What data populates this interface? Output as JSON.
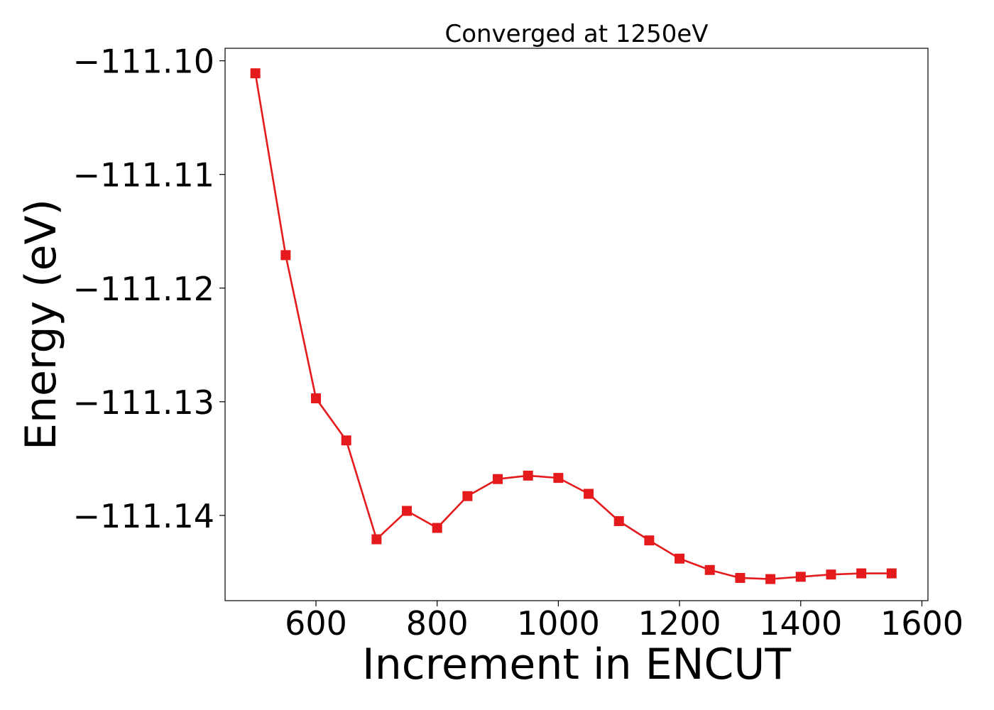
{
  "chart_data": {
    "type": "line",
    "title": "Converged at 1250eV",
    "xlabel": "Increment in ENCUT",
    "ylabel": "Energy (eV)",
    "xlim": [
      450,
      1610
    ],
    "ylim": [
      -111.1475,
      -111.0989
    ],
    "xticks": [
      600,
      800,
      1000,
      1200,
      1400,
      1600
    ],
    "yticks": [
      -111.1,
      -111.11,
      -111.12,
      -111.13,
      -111.14
    ],
    "xtick_labels": [
      "600",
      "800",
      "1000",
      "1200",
      "1400",
      "1600"
    ],
    "ytick_labels": [
      "−111.10",
      "−111.11",
      "−111.12",
      "−111.13",
      "−111.14"
    ],
    "grid": false,
    "series": [
      {
        "color": "#e41a1c",
        "marker": "square",
        "x": [
          500,
          550,
          600,
          650,
          700,
          750,
          800,
          850,
          900,
          950,
          1000,
          1050,
          1100,
          1150,
          1200,
          1250,
          1300,
          1350,
          1400,
          1450,
          1500,
          1550
        ],
        "y": [
          -111.1011,
          -111.1171,
          -111.1297,
          -111.1334,
          -111.1421,
          -111.1396,
          -111.1411,
          -111.1383,
          -111.1368,
          -111.1365,
          -111.1367,
          -111.1381,
          -111.1405,
          -111.1422,
          -111.1438,
          -111.1448,
          -111.1455,
          -111.1456,
          -111.1454,
          -111.1452,
          -111.1451,
          -111.1451
        ]
      }
    ]
  }
}
